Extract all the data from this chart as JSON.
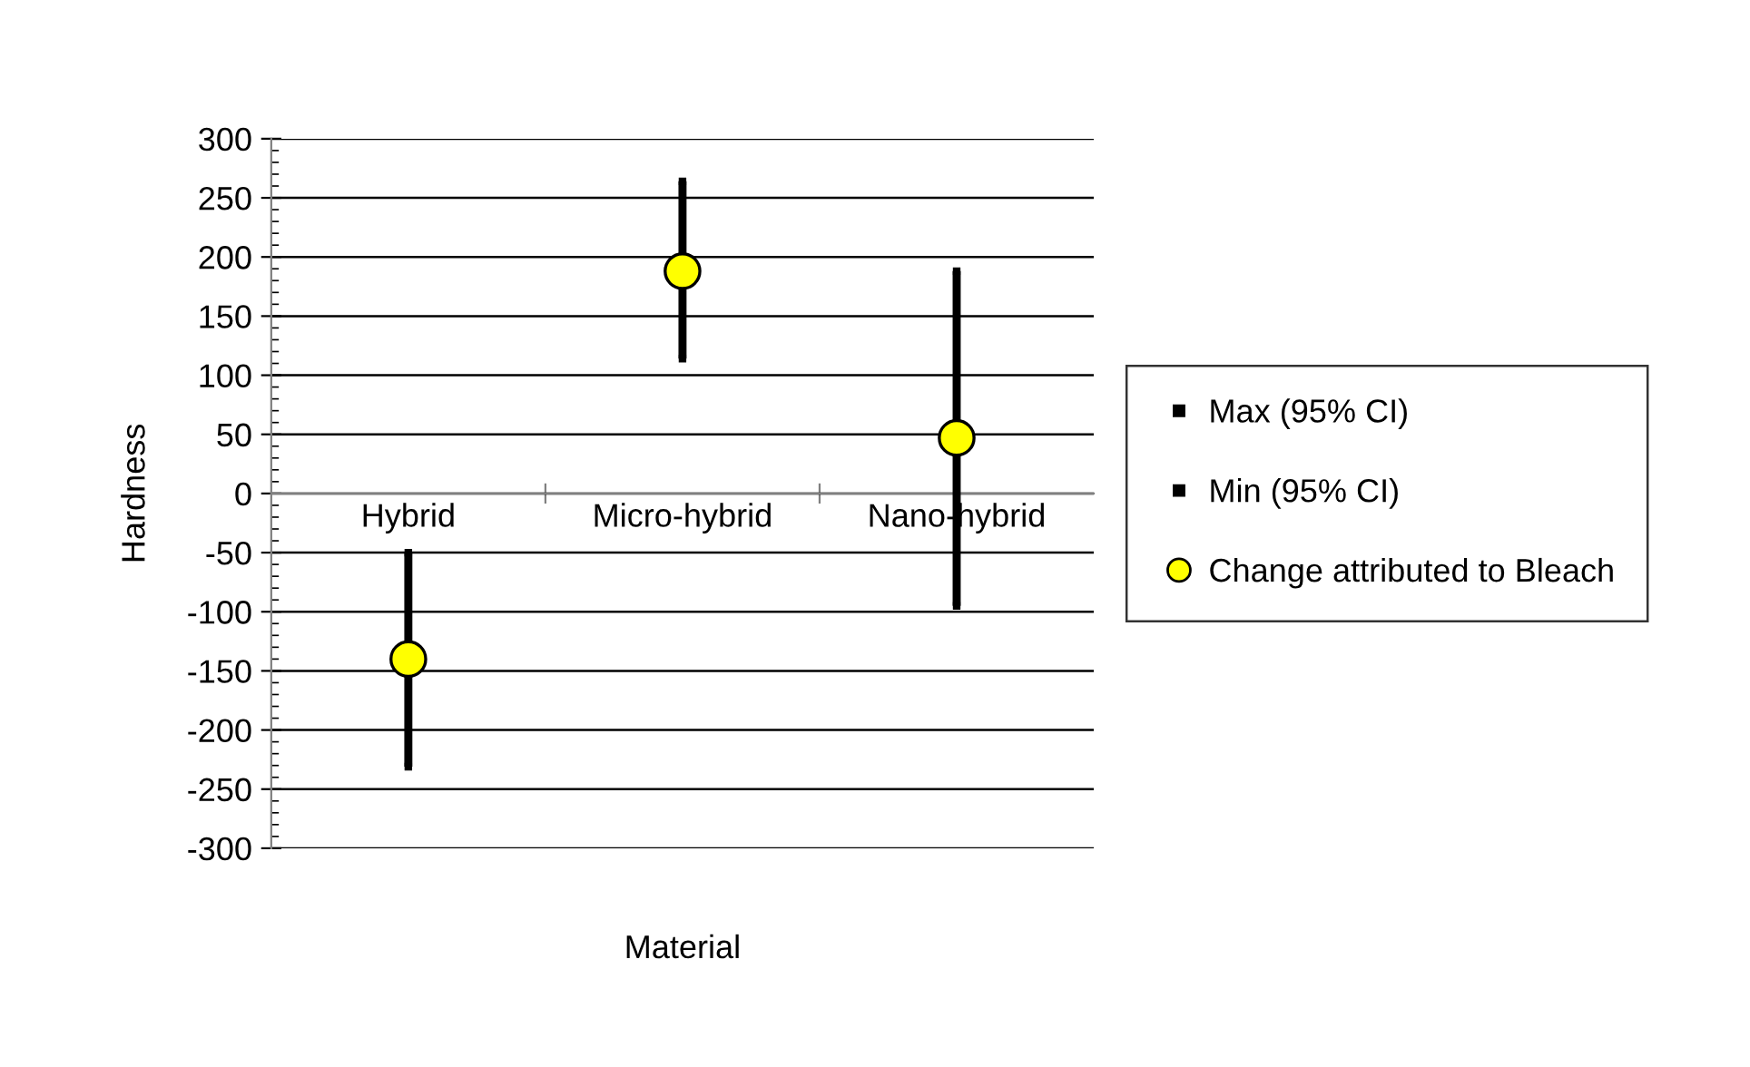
{
  "chart_data": {
    "type": "scatter",
    "xlabel": "Material",
    "ylabel": "Hardness",
    "categories": [
      "Hybrid",
      "Micro-hybrid",
      "Nano-hybrid"
    ],
    "series": [
      {
        "name": "Max (95% CI)",
        "marker": "square",
        "color": "#000000",
        "values": [
          -50,
          264,
          188
        ]
      },
      {
        "name": "Min (95% CI)",
        "marker": "square",
        "color": "#000000",
        "values": [
          -231,
          114,
          -95
        ]
      },
      {
        "name": "Change attributed to Bleach",
        "color": "#ffff00",
        "values": [
          -140,
          188,
          47
        ]
      }
    ],
    "ylim": [
      -300,
      300
    ],
    "yticks": [
      -300,
      -250,
      -200,
      -150,
      -100,
      -50,
      0,
      50,
      100,
      150,
      200,
      250,
      300
    ],
    "grid": "y",
    "legend": "right",
    "marker": "circle"
  }
}
